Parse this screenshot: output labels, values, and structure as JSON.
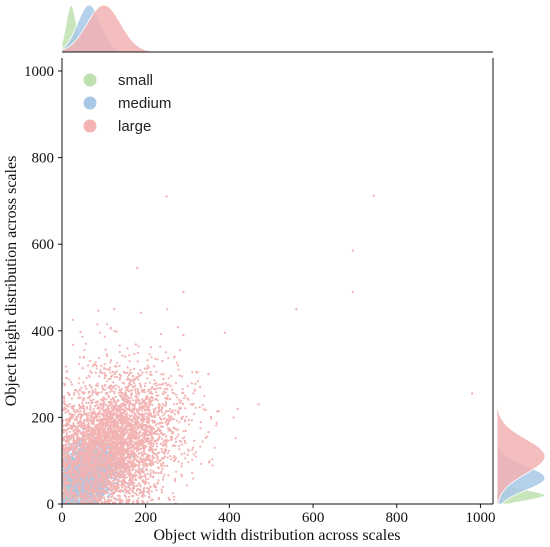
{
  "chart_data": {
    "type": "scatter",
    "title": "",
    "xlabel": "Object width distribution across scales",
    "ylabel": "Object height distribution across scales",
    "xlim": [
      0,
      1030
    ],
    "ylim": [
      0,
      1030
    ],
    "x_ticks": [
      "0",
      "200",
      "400",
      "600",
      "800",
      "1000"
    ],
    "y_ticks": [
      "0",
      "200",
      "400",
      "600",
      "800",
      "1000"
    ],
    "grid": false,
    "legend_position": "top-left",
    "marginal_plots": "kde",
    "series": [
      {
        "name": "small",
        "color": "#bfe0b0",
        "center": [
          20,
          20
        ],
        "spread": [
          9,
          9
        ],
        "x_kde_peak": 22,
        "y_kde_peak": 20,
        "points": [
          [
            20,
            20
          ],
          [
            12,
            30
          ],
          [
            30,
            14
          ],
          [
            25,
            25
          ],
          [
            8,
            12
          ],
          [
            35,
            28
          ],
          [
            18,
            8
          ],
          [
            28,
            36
          ]
        ]
      },
      {
        "name": "medium",
        "color": "#a8c8e6",
        "center": [
          62,
          72
        ],
        "spread": [
          30,
          32
        ],
        "x_kde_peak": 65,
        "y_kde_peak": 60,
        "points": [
          [
            60,
            70
          ],
          [
            90,
            90
          ],
          [
            40,
            110
          ],
          [
            120,
            60
          ],
          [
            30,
            40
          ],
          [
            150,
            80
          ],
          [
            100,
            130
          ],
          [
            70,
            30
          ],
          [
            170,
            110
          ],
          [
            20,
            150
          ]
        ]
      },
      {
        "name": "large",
        "color": "#f2b3b3",
        "center": [
          120,
          140
        ],
        "spread": [
          70,
          70
        ],
        "x_kde_peak": 100,
        "y_kde_peak": 110,
        "points": [
          [
            250,
            710
          ],
          [
            745,
            712
          ],
          [
            695,
            585
          ],
          [
            695,
            490
          ],
          [
            290,
            490
          ],
          [
            560,
            450
          ],
          [
            980,
            255
          ],
          [
            180,
            545
          ],
          [
            125,
            450
          ],
          [
            290,
            390
          ],
          [
            470,
            230
          ],
          [
            410,
            200
          ],
          [
            350,
            300
          ],
          [
            240,
            330
          ],
          [
            330,
            270
          ]
        ]
      }
    ]
  }
}
